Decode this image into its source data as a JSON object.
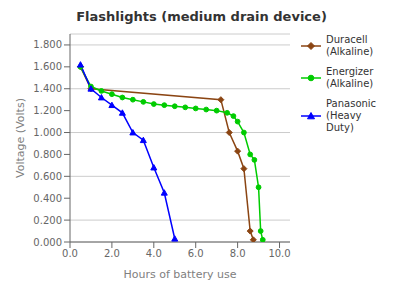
{
  "chart_data": {
    "type": "line",
    "title": "Flashlights (medium drain device)",
    "x_label": "Hours of battery use",
    "y_label": "Voltage (Volts)",
    "xlim": [
      0,
      10.5
    ],
    "ylim": [
      0.0,
      1.9
    ],
    "xticks": [
      {
        "value": 0.0,
        "label": "0.0"
      },
      {
        "value": 2.0,
        "label": "2.0"
      },
      {
        "value": 4.0,
        "label": "4.0"
      },
      {
        "value": 6.0,
        "label": "6.0"
      },
      {
        "value": 8.0,
        "label": "8.0"
      },
      {
        "value": 10.0,
        "label": "10.0"
      }
    ],
    "yticks": [
      {
        "value": 0.0,
        "label": "0.000"
      },
      {
        "value": 0.2,
        "label": "0.200"
      },
      {
        "value": 0.4,
        "label": "0.400"
      },
      {
        "value": 0.6,
        "label": "0.600"
      },
      {
        "value": 0.8,
        "label": "0.800"
      },
      {
        "value": 1.0,
        "label": "1.000"
      },
      {
        "value": 1.2,
        "label": "1.200"
      },
      {
        "value": 1.4,
        "label": "1.400"
      },
      {
        "value": 1.6,
        "label": "1.600"
      },
      {
        "value": 1.8,
        "label": "1.800"
      }
    ],
    "grid": "y",
    "legend": "right",
    "series": [
      {
        "name": "Duracell\n(Alkaline)",
        "color": "#8B4513",
        "marker": "diamond",
        "x": [
          0.5,
          1.0,
          7.2,
          7.6,
          8.0,
          8.3,
          8.6,
          8.75
        ],
        "values": [
          1.6,
          1.4,
          1.3,
          1.0,
          0.83,
          0.67,
          0.1,
          0.02
        ]
      },
      {
        "name": "Energizer\n(Alkaline)",
        "color": "#00cc00",
        "marker": "circle",
        "x": [
          0.5,
          1.0,
          1.5,
          2.0,
          2.5,
          3.0,
          3.5,
          4.0,
          4.5,
          5.0,
          5.5,
          6.0,
          6.5,
          7.0,
          7.5,
          7.8,
          8.0,
          8.3,
          8.6,
          8.8,
          9.0,
          9.1,
          9.2
        ],
        "values": [
          1.6,
          1.42,
          1.38,
          1.35,
          1.32,
          1.3,
          1.28,
          1.26,
          1.25,
          1.24,
          1.23,
          1.22,
          1.21,
          1.2,
          1.18,
          1.15,
          1.1,
          1.0,
          0.8,
          0.75,
          0.5,
          0.1,
          0.02
        ]
      },
      {
        "name": "Panasonic\n(Heavy Duty)",
        "color": "#0000ff",
        "marker": "triangle",
        "x": [
          0.5,
          1.0,
          1.5,
          2.0,
          2.5,
          3.0,
          3.5,
          4.0,
          4.5,
          5.0
        ],
        "values": [
          1.62,
          1.4,
          1.32,
          1.25,
          1.18,
          1.0,
          0.93,
          0.68,
          0.45,
          0.03
        ]
      }
    ]
  }
}
